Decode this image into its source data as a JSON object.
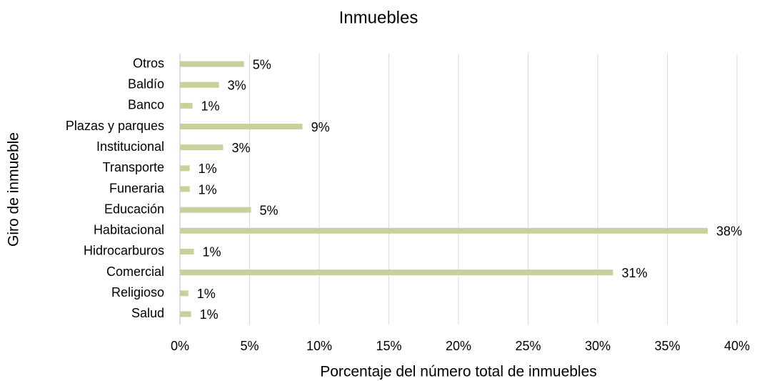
{
  "chart_data": {
    "type": "bar",
    "orientation": "horizontal",
    "title": "Inmuebles",
    "x_label": "Porcentaje del número total de inmuebles",
    "y_label": "Giro de inmueble",
    "categories": [
      "Otros",
      "Baldío",
      "Banco",
      "Plazas y parques",
      "Institucional",
      "Transporte",
      "Funeraria",
      "Educación",
      "Habitacional",
      "Hidrocarburos",
      "Comercial",
      "Religioso",
      "Salud"
    ],
    "values": [
      4.6,
      2.8,
      0.9,
      8.8,
      3.1,
      0.7,
      0.7,
      5.1,
      37.9,
      1.0,
      31.1,
      0.6,
      0.8
    ],
    "value_labels": [
      "5%",
      "3%",
      "1%",
      "9%",
      "3%",
      "1%",
      "1%",
      "5%",
      "38%",
      "1%",
      "31%",
      "1%",
      "1%"
    ],
    "color": "#c5d29b",
    "xlim": [
      0,
      40
    ],
    "xticks": [
      {
        "value": 0,
        "label": "0%"
      },
      {
        "value": 5,
        "label": "5%"
      },
      {
        "value": 10,
        "label": "10%"
      },
      {
        "value": 15,
        "label": "15%"
      },
      {
        "value": 20,
        "label": "20%"
      },
      {
        "value": 25,
        "label": "25%"
      },
      {
        "value": 30,
        "label": "30%"
      },
      {
        "value": 35,
        "label": "35%"
      },
      {
        "value": 40,
        "label": "40%"
      }
    ],
    "grid": true
  }
}
